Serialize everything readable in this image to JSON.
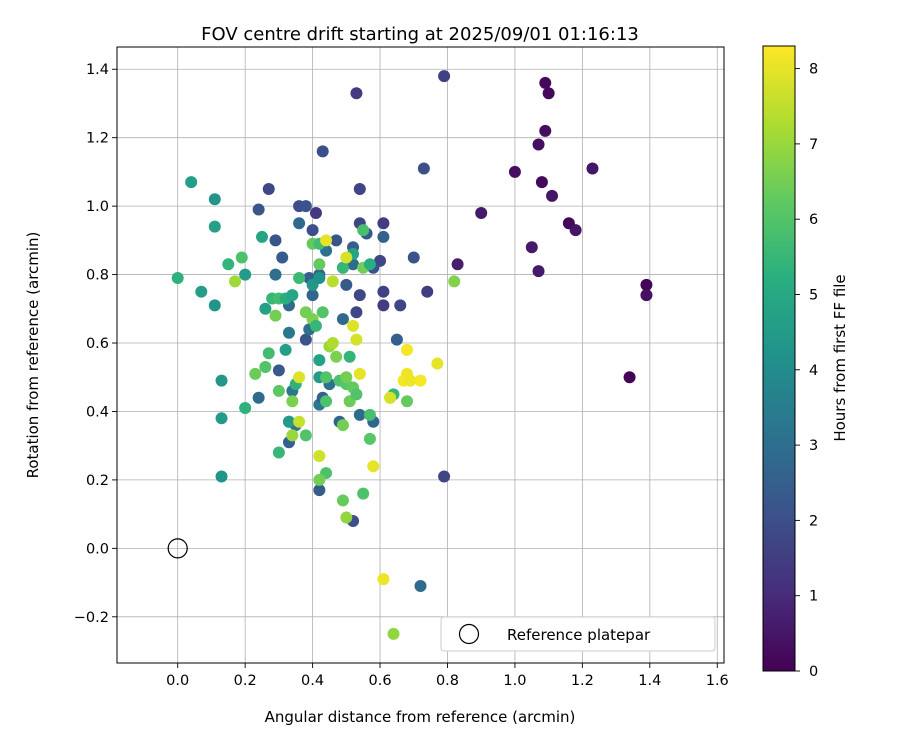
{
  "chart_data": {
    "type": "scatter",
    "title": "FOV centre drift starting at 2025/09/01 01:16:13",
    "xlabel": "Angular distance from reference (arcmin)",
    "ylabel": "Rotation from reference (arcmin)",
    "xlim": [
      -0.18,
      1.62
    ],
    "ylim": [
      -0.335,
      1.465
    ],
    "xticks": [
      0.0,
      0.2,
      0.4,
      0.6,
      0.8,
      1.0,
      1.2,
      1.4,
      1.6
    ],
    "xtick_labels": [
      "0.0",
      "0.2",
      "0.4",
      "0.6",
      "0.8",
      "1.0",
      "1.2",
      "1.4",
      "1.6"
    ],
    "yticks": [
      -0.2,
      0.0,
      0.2,
      0.4,
      0.6,
      0.8,
      1.0,
      1.2,
      1.4
    ],
    "ytick_labels": [
      "−0.2",
      "0.0",
      "0.2",
      "0.4",
      "0.6",
      "0.8",
      "1.0",
      "1.2",
      "1.4"
    ],
    "grid": true,
    "colormap": "viridis",
    "colorbar": {
      "label": "Hours from first FF file",
      "range": [
        0,
        8.3
      ],
      "ticks": [
        0,
        1,
        2,
        3,
        4,
        5,
        6,
        7,
        8
      ],
      "tick_labels": [
        "0",
        "1",
        "2",
        "3",
        "4",
        "5",
        "6",
        "7",
        "8"
      ]
    },
    "legend": {
      "placement": "lower right",
      "entries": [
        {
          "label": "Reference platepar",
          "marker": "open-circle"
        }
      ]
    },
    "reference_point": {
      "x": 0.0,
      "y": 0.0
    },
    "points": [
      {
        "x": 1.09,
        "y": 1.36,
        "t": 0.2
      },
      {
        "x": 1.1,
        "y": 1.33,
        "t": 0.2
      },
      {
        "x": 1.09,
        "y": 1.22,
        "t": 0.3
      },
      {
        "x": 1.07,
        "y": 1.18,
        "t": 0.3
      },
      {
        "x": 1.23,
        "y": 1.11,
        "t": 0.5
      },
      {
        "x": 1.0,
        "y": 1.1,
        "t": 0.3
      },
      {
        "x": 1.08,
        "y": 1.07,
        "t": 0.2
      },
      {
        "x": 1.11,
        "y": 1.03,
        "t": 0.5
      },
      {
        "x": 0.9,
        "y": 0.98,
        "t": 0.6
      },
      {
        "x": 1.16,
        "y": 0.95,
        "t": 0.2
      },
      {
        "x": 1.18,
        "y": 0.93,
        "t": 0.5
      },
      {
        "x": 1.05,
        "y": 0.88,
        "t": 0.6
      },
      {
        "x": 0.83,
        "y": 0.83,
        "t": 0.7
      },
      {
        "x": 1.07,
        "y": 0.81,
        "t": 0.6
      },
      {
        "x": 1.39,
        "y": 0.77,
        "t": 0.1
      },
      {
        "x": 1.39,
        "y": 0.74,
        "t": 0.4
      },
      {
        "x": 1.34,
        "y": 0.5,
        "t": 0.1
      },
      {
        "x": 0.79,
        "y": 1.38,
        "t": 1.6
      },
      {
        "x": 0.53,
        "y": 1.33,
        "t": 1.4
      },
      {
        "x": 0.73,
        "y": 1.11,
        "t": 2.0
      },
      {
        "x": 0.43,
        "y": 1.16,
        "t": 2.0
      },
      {
        "x": 0.54,
        "y": 1.05,
        "t": 1.7
      },
      {
        "x": 0.27,
        "y": 1.05,
        "t": 1.8
      },
      {
        "x": 0.36,
        "y": 1.0,
        "t": 2.0
      },
      {
        "x": 0.38,
        "y": 1.0,
        "t": 2.1
      },
      {
        "x": 0.24,
        "y": 0.99,
        "t": 2.2
      },
      {
        "x": 0.41,
        "y": 0.98,
        "t": 1.4
      },
      {
        "x": 0.54,
        "y": 0.95,
        "t": 1.7
      },
      {
        "x": 0.61,
        "y": 0.95,
        "t": 1.5
      },
      {
        "x": 0.36,
        "y": 0.95,
        "t": 2.8
      },
      {
        "x": 0.4,
        "y": 0.93,
        "t": 2.0
      },
      {
        "x": 0.56,
        "y": 0.92,
        "t": 2.3
      },
      {
        "x": 0.61,
        "y": 0.91,
        "t": 2.6
      },
      {
        "x": 0.29,
        "y": 0.9,
        "t": 2.1
      },
      {
        "x": 0.47,
        "y": 0.9,
        "t": 2.2
      },
      {
        "x": 0.52,
        "y": 0.88,
        "t": 2.5
      },
      {
        "x": 0.44,
        "y": 0.87,
        "t": 3.1
      },
      {
        "x": 0.7,
        "y": 0.85,
        "t": 2.1
      },
      {
        "x": 0.31,
        "y": 0.85,
        "t": 2.4
      },
      {
        "x": 0.6,
        "y": 0.84,
        "t": 1.7
      },
      {
        "x": 0.52,
        "y": 0.83,
        "t": 2.9
      },
      {
        "x": 0.58,
        "y": 0.82,
        "t": 2.0
      },
      {
        "x": 0.49,
        "y": 0.82,
        "t": 2.3
      },
      {
        "x": 0.42,
        "y": 0.8,
        "t": 2.6
      },
      {
        "x": 0.29,
        "y": 0.8,
        "t": 3.0
      },
      {
        "x": 0.39,
        "y": 0.79,
        "t": 2.5
      },
      {
        "x": 0.5,
        "y": 0.77,
        "t": 2.3
      },
      {
        "x": 0.61,
        "y": 0.75,
        "t": 1.6
      },
      {
        "x": 0.54,
        "y": 0.74,
        "t": 1.8
      },
      {
        "x": 0.74,
        "y": 0.75,
        "t": 1.5
      },
      {
        "x": 0.66,
        "y": 0.71,
        "t": 1.7
      },
      {
        "x": 0.61,
        "y": 0.71,
        "t": 1.5
      },
      {
        "x": 0.53,
        "y": 0.69,
        "t": 1.8
      },
      {
        "x": 0.4,
        "y": 0.74,
        "t": 2.7
      },
      {
        "x": 0.33,
        "y": 0.71,
        "t": 2.9
      },
      {
        "x": 0.49,
        "y": 0.67,
        "t": 2.8
      },
      {
        "x": 0.38,
        "y": 0.61,
        "t": 2.1
      },
      {
        "x": 0.39,
        "y": 0.64,
        "t": 3.0
      },
      {
        "x": 0.65,
        "y": 0.61,
        "t": 2.5
      },
      {
        "x": 0.33,
        "y": 0.63,
        "t": 3.3
      },
      {
        "x": 0.3,
        "y": 0.52,
        "t": 2.3
      },
      {
        "x": 0.34,
        "y": 0.46,
        "t": 3.2
      },
      {
        "x": 0.45,
        "y": 0.48,
        "t": 3.0
      },
      {
        "x": 0.42,
        "y": 0.42,
        "t": 3.3
      },
      {
        "x": 0.43,
        "y": 0.44,
        "t": 2.5
      },
      {
        "x": 0.48,
        "y": 0.37,
        "t": 2.7
      },
      {
        "x": 0.54,
        "y": 0.39,
        "t": 2.9
      },
      {
        "x": 0.58,
        "y": 0.37,
        "t": 2.7
      },
      {
        "x": 0.24,
        "y": 0.44,
        "t": 2.9
      },
      {
        "x": 0.33,
        "y": 0.37,
        "t": 2.4
      },
      {
        "x": 0.35,
        "y": 0.36,
        "t": 3.2
      },
      {
        "x": 0.33,
        "y": 0.31,
        "t": 2.6
      },
      {
        "x": 0.42,
        "y": 0.17,
        "t": 2.4
      },
      {
        "x": 0.52,
        "y": 0.08,
        "t": 2.0
      },
      {
        "x": 0.79,
        "y": 0.21,
        "t": 1.7
      },
      {
        "x": 0.72,
        "y": -0.11,
        "t": 2.9
      },
      {
        "x": 0.04,
        "y": 1.07,
        "t": 4.6
      },
      {
        "x": 0.11,
        "y": 1.02,
        "t": 4.3
      },
      {
        "x": 0.11,
        "y": 0.94,
        "t": 4.7
      },
      {
        "x": 0.25,
        "y": 0.91,
        "t": 4.8
      },
      {
        "x": 0.15,
        "y": 0.83,
        "t": 5.4
      },
      {
        "x": 0.19,
        "y": 0.85,
        "t": 5.9
      },
      {
        "x": 0.2,
        "y": 0.8,
        "t": 4.5
      },
      {
        "x": 0.0,
        "y": 0.79,
        "t": 5.3
      },
      {
        "x": 0.07,
        "y": 0.75,
        "t": 4.6
      },
      {
        "x": 0.11,
        "y": 0.71,
        "t": 4.3
      },
      {
        "x": 0.26,
        "y": 0.7,
        "t": 4.7
      },
      {
        "x": 0.28,
        "y": 0.73,
        "t": 5.5
      },
      {
        "x": 0.3,
        "y": 0.73,
        "t": 5.7
      },
      {
        "x": 0.32,
        "y": 0.73,
        "t": 5.2
      },
      {
        "x": 0.34,
        "y": 0.74,
        "t": 4.9
      },
      {
        "x": 0.36,
        "y": 0.79,
        "t": 5.6
      },
      {
        "x": 0.4,
        "y": 0.77,
        "t": 4.4
      },
      {
        "x": 0.42,
        "y": 0.79,
        "t": 4.2
      },
      {
        "x": 0.42,
        "y": 0.83,
        "t": 6.3
      },
      {
        "x": 0.4,
        "y": 0.89,
        "t": 6.3
      },
      {
        "x": 0.42,
        "y": 0.89,
        "t": 5.7
      },
      {
        "x": 0.49,
        "y": 0.82,
        "t": 5.5
      },
      {
        "x": 0.52,
        "y": 0.86,
        "t": 4.8
      },
      {
        "x": 0.55,
        "y": 0.93,
        "t": 5.8
      },
      {
        "x": 0.55,
        "y": 0.82,
        "t": 6.5
      },
      {
        "x": 0.57,
        "y": 0.83,
        "t": 5.2
      },
      {
        "x": 0.29,
        "y": 0.68,
        "t": 6.5
      },
      {
        "x": 0.4,
        "y": 0.67,
        "t": 6.6
      },
      {
        "x": 0.43,
        "y": 0.69,
        "t": 6.0
      },
      {
        "x": 0.38,
        "y": 0.69,
        "t": 6.5
      },
      {
        "x": 0.41,
        "y": 0.65,
        "t": 5.5
      },
      {
        "x": 0.42,
        "y": 0.55,
        "t": 4.8
      },
      {
        "x": 0.42,
        "y": 0.5,
        "t": 4.5
      },
      {
        "x": 0.32,
        "y": 0.58,
        "t": 4.6
      },
      {
        "x": 0.27,
        "y": 0.57,
        "t": 5.7
      },
      {
        "x": 0.26,
        "y": 0.53,
        "t": 6.0
      },
      {
        "x": 0.23,
        "y": 0.51,
        "t": 6.4
      },
      {
        "x": 0.13,
        "y": 0.49,
        "t": 4.4
      },
      {
        "x": 0.2,
        "y": 0.41,
        "t": 5.3
      },
      {
        "x": 0.13,
        "y": 0.38,
        "t": 4.5
      },
      {
        "x": 0.13,
        "y": 0.21,
        "t": 4.3
      },
      {
        "x": 0.3,
        "y": 0.28,
        "t": 5.5
      },
      {
        "x": 0.3,
        "y": 0.46,
        "t": 6.2
      },
      {
        "x": 0.34,
        "y": 0.43,
        "t": 6.6
      },
      {
        "x": 0.35,
        "y": 0.48,
        "t": 5.3
      },
      {
        "x": 0.38,
        "y": 0.33,
        "t": 6.0
      },
      {
        "x": 0.44,
        "y": 0.43,
        "t": 5.9
      },
      {
        "x": 0.44,
        "y": 0.22,
        "t": 5.9
      },
      {
        "x": 0.42,
        "y": 0.2,
        "t": 6.5
      },
      {
        "x": 0.44,
        "y": 0.5,
        "t": 6.0
      },
      {
        "x": 0.45,
        "y": 0.59,
        "t": 7.0
      },
      {
        "x": 0.47,
        "y": 0.56,
        "t": 6.6
      },
      {
        "x": 0.46,
        "y": 0.6,
        "t": 7.3
      },
      {
        "x": 0.51,
        "y": 0.56,
        "t": 5.4
      },
      {
        "x": 0.48,
        "y": 0.49,
        "t": 5.9
      },
      {
        "x": 0.5,
        "y": 0.48,
        "t": 6.1
      },
      {
        "x": 0.51,
        "y": 0.43,
        "t": 6.4
      },
      {
        "x": 0.52,
        "y": 0.47,
        "t": 6.3
      },
      {
        "x": 0.53,
        "y": 0.45,
        "t": 6.0
      },
      {
        "x": 0.49,
        "y": 0.36,
        "t": 6.5
      },
      {
        "x": 0.49,
        "y": 0.14,
        "t": 6.3
      },
      {
        "x": 0.5,
        "y": 0.09,
        "t": 6.9
      },
      {
        "x": 0.55,
        "y": 0.16,
        "t": 5.9
      },
      {
        "x": 0.57,
        "y": 0.39,
        "t": 5.8
      },
      {
        "x": 0.57,
        "y": 0.32,
        "t": 6.1
      },
      {
        "x": 0.5,
        "y": 0.5,
        "t": 6.5
      },
      {
        "x": 0.63,
        "y": 0.44,
        "t": 6.8
      },
      {
        "x": 0.64,
        "y": 0.45,
        "t": 5.5
      },
      {
        "x": 0.68,
        "y": 0.43,
        "t": 6.3
      },
      {
        "x": 0.82,
        "y": 0.78,
        "t": 6.7
      },
      {
        "x": 0.64,
        "y": -0.25,
        "t": 6.9
      },
      {
        "x": 0.34,
        "y": 0.33,
        "t": 7.0
      },
      {
        "x": 0.17,
        "y": 0.78,
        "t": 7.1
      },
      {
        "x": 0.33,
        "y": 0.37,
        "t": 4.5
      },
      {
        "x": 0.36,
        "y": 0.5,
        "t": 7.9
      },
      {
        "x": 0.36,
        "y": 0.37,
        "t": 7.6
      },
      {
        "x": 0.42,
        "y": 0.27,
        "t": 7.7
      },
      {
        "x": 0.44,
        "y": 0.9,
        "t": 8.0
      },
      {
        "x": 0.5,
        "y": 0.85,
        "t": 7.8
      },
      {
        "x": 0.46,
        "y": 0.78,
        "t": 7.4
      },
      {
        "x": 0.52,
        "y": 0.65,
        "t": 7.9
      },
      {
        "x": 0.53,
        "y": 0.61,
        "t": 7.8
      },
      {
        "x": 0.54,
        "y": 0.51,
        "t": 8.0
      },
      {
        "x": 0.58,
        "y": 0.24,
        "t": 8.0
      },
      {
        "x": 0.61,
        "y": -0.09,
        "t": 8.1
      },
      {
        "x": 0.63,
        "y": 0.44,
        "t": 7.8
      },
      {
        "x": 0.67,
        "y": 0.49,
        "t": 8.2
      },
      {
        "x": 0.69,
        "y": 0.49,
        "t": 8.1
      },
      {
        "x": 0.68,
        "y": 0.51,
        "t": 8.1
      },
      {
        "x": 0.68,
        "y": 0.58,
        "t": 8.2
      },
      {
        "x": 0.72,
        "y": 0.49,
        "t": 8.2
      },
      {
        "x": 0.77,
        "y": 0.54,
        "t": 8.0
      }
    ]
  }
}
